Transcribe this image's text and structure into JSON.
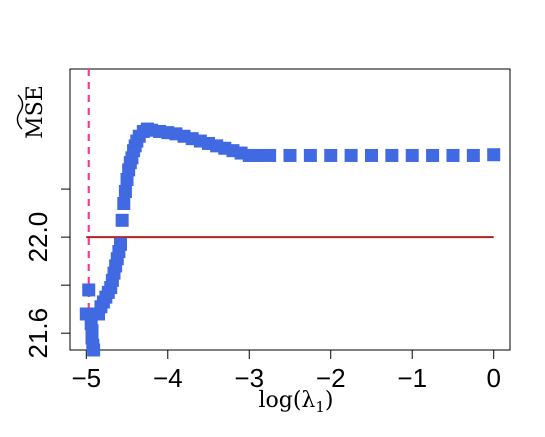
{
  "chart_data": {
    "type": "scatter",
    "title": "",
    "xlabel": "log(λ₁)",
    "ylabel": "MSE",
    "xlim": [
      -5.2,
      0.2
    ],
    "ylim": [
      21.53,
      22.7
    ],
    "x_ticks": [
      -5,
      -4,
      -3,
      -2,
      -1,
      0
    ],
    "x_tick_labels": [
      "−5",
      "−4",
      "−3",
      "−2",
      "−1",
      "0"
    ],
    "y_ticks": [
      21.6,
      21.8,
      22.0,
      22.2
    ],
    "y_tick_labels": [
      "21.6",
      "",
      "22.0",
      ""
    ],
    "grid": false,
    "series": [
      {
        "marker": "square",
        "color": "#4169e1",
        "points": [
          [
            -5.0,
            21.68
          ],
          [
            -4.97,
            21.78
          ],
          [
            -4.94,
            21.64
          ],
          [
            -4.93,
            21.58
          ],
          [
            -4.93,
            21.61
          ],
          [
            -4.92,
            21.55
          ],
          [
            -4.91,
            21.53
          ],
          [
            -4.85,
            21.68
          ],
          [
            -4.82,
            21.71
          ],
          [
            -4.79,
            21.73
          ],
          [
            -4.76,
            21.75
          ],
          [
            -4.73,
            21.77
          ],
          [
            -4.7,
            21.79
          ],
          [
            -4.68,
            21.82
          ],
          [
            -4.66,
            21.85
          ],
          [
            -4.64,
            21.88
          ],
          [
            -4.62,
            21.91
          ],
          [
            -4.6,
            21.94
          ],
          [
            -4.58,
            21.97
          ],
          [
            -4.56,
            22.07
          ],
          [
            -4.54,
            22.14
          ],
          [
            -4.52,
            22.19
          ],
          [
            -4.5,
            22.24
          ],
          [
            -4.48,
            22.28
          ],
          [
            -4.46,
            22.31
          ],
          [
            -4.44,
            22.33
          ],
          [
            -4.42,
            22.36
          ],
          [
            -4.4,
            22.38
          ],
          [
            -4.38,
            22.4
          ],
          [
            -4.35,
            22.42
          ],
          [
            -4.3,
            22.44
          ],
          [
            -4.25,
            22.45
          ],
          [
            -4.2,
            22.445
          ],
          [
            -4.1,
            22.44
          ],
          [
            -4.0,
            22.435
          ],
          [
            -3.9,
            22.43
          ],
          [
            -3.8,
            22.42
          ],
          [
            -3.7,
            22.41
          ],
          [
            -3.6,
            22.4
          ],
          [
            -3.5,
            22.39
          ],
          [
            -3.4,
            22.38
          ],
          [
            -3.3,
            22.37
          ],
          [
            -3.2,
            22.36
          ],
          [
            -3.1,
            22.35
          ],
          [
            -3.0,
            22.34
          ],
          [
            -2.9,
            22.34
          ],
          [
            -2.75,
            22.34
          ],
          [
            -2.5,
            22.34
          ],
          [
            -2.25,
            22.34
          ],
          [
            -2.0,
            22.34
          ],
          [
            -1.75,
            22.34
          ],
          [
            -1.5,
            22.34
          ],
          [
            -1.25,
            22.34
          ],
          [
            -1.0,
            22.34
          ],
          [
            -0.75,
            22.34
          ],
          [
            -0.5,
            22.34
          ],
          [
            -0.25,
            22.34
          ],
          [
            0.0,
            22.343
          ]
        ]
      }
    ],
    "reference_lines": [
      {
        "orientation": "horizontal",
        "y": 22.0,
        "x_from": -5.0,
        "x_to": 0.0,
        "color": "#b22222",
        "style": "solid"
      },
      {
        "orientation": "vertical",
        "x": -4.97,
        "color": "#e6409a",
        "style": "dashed"
      }
    ]
  }
}
